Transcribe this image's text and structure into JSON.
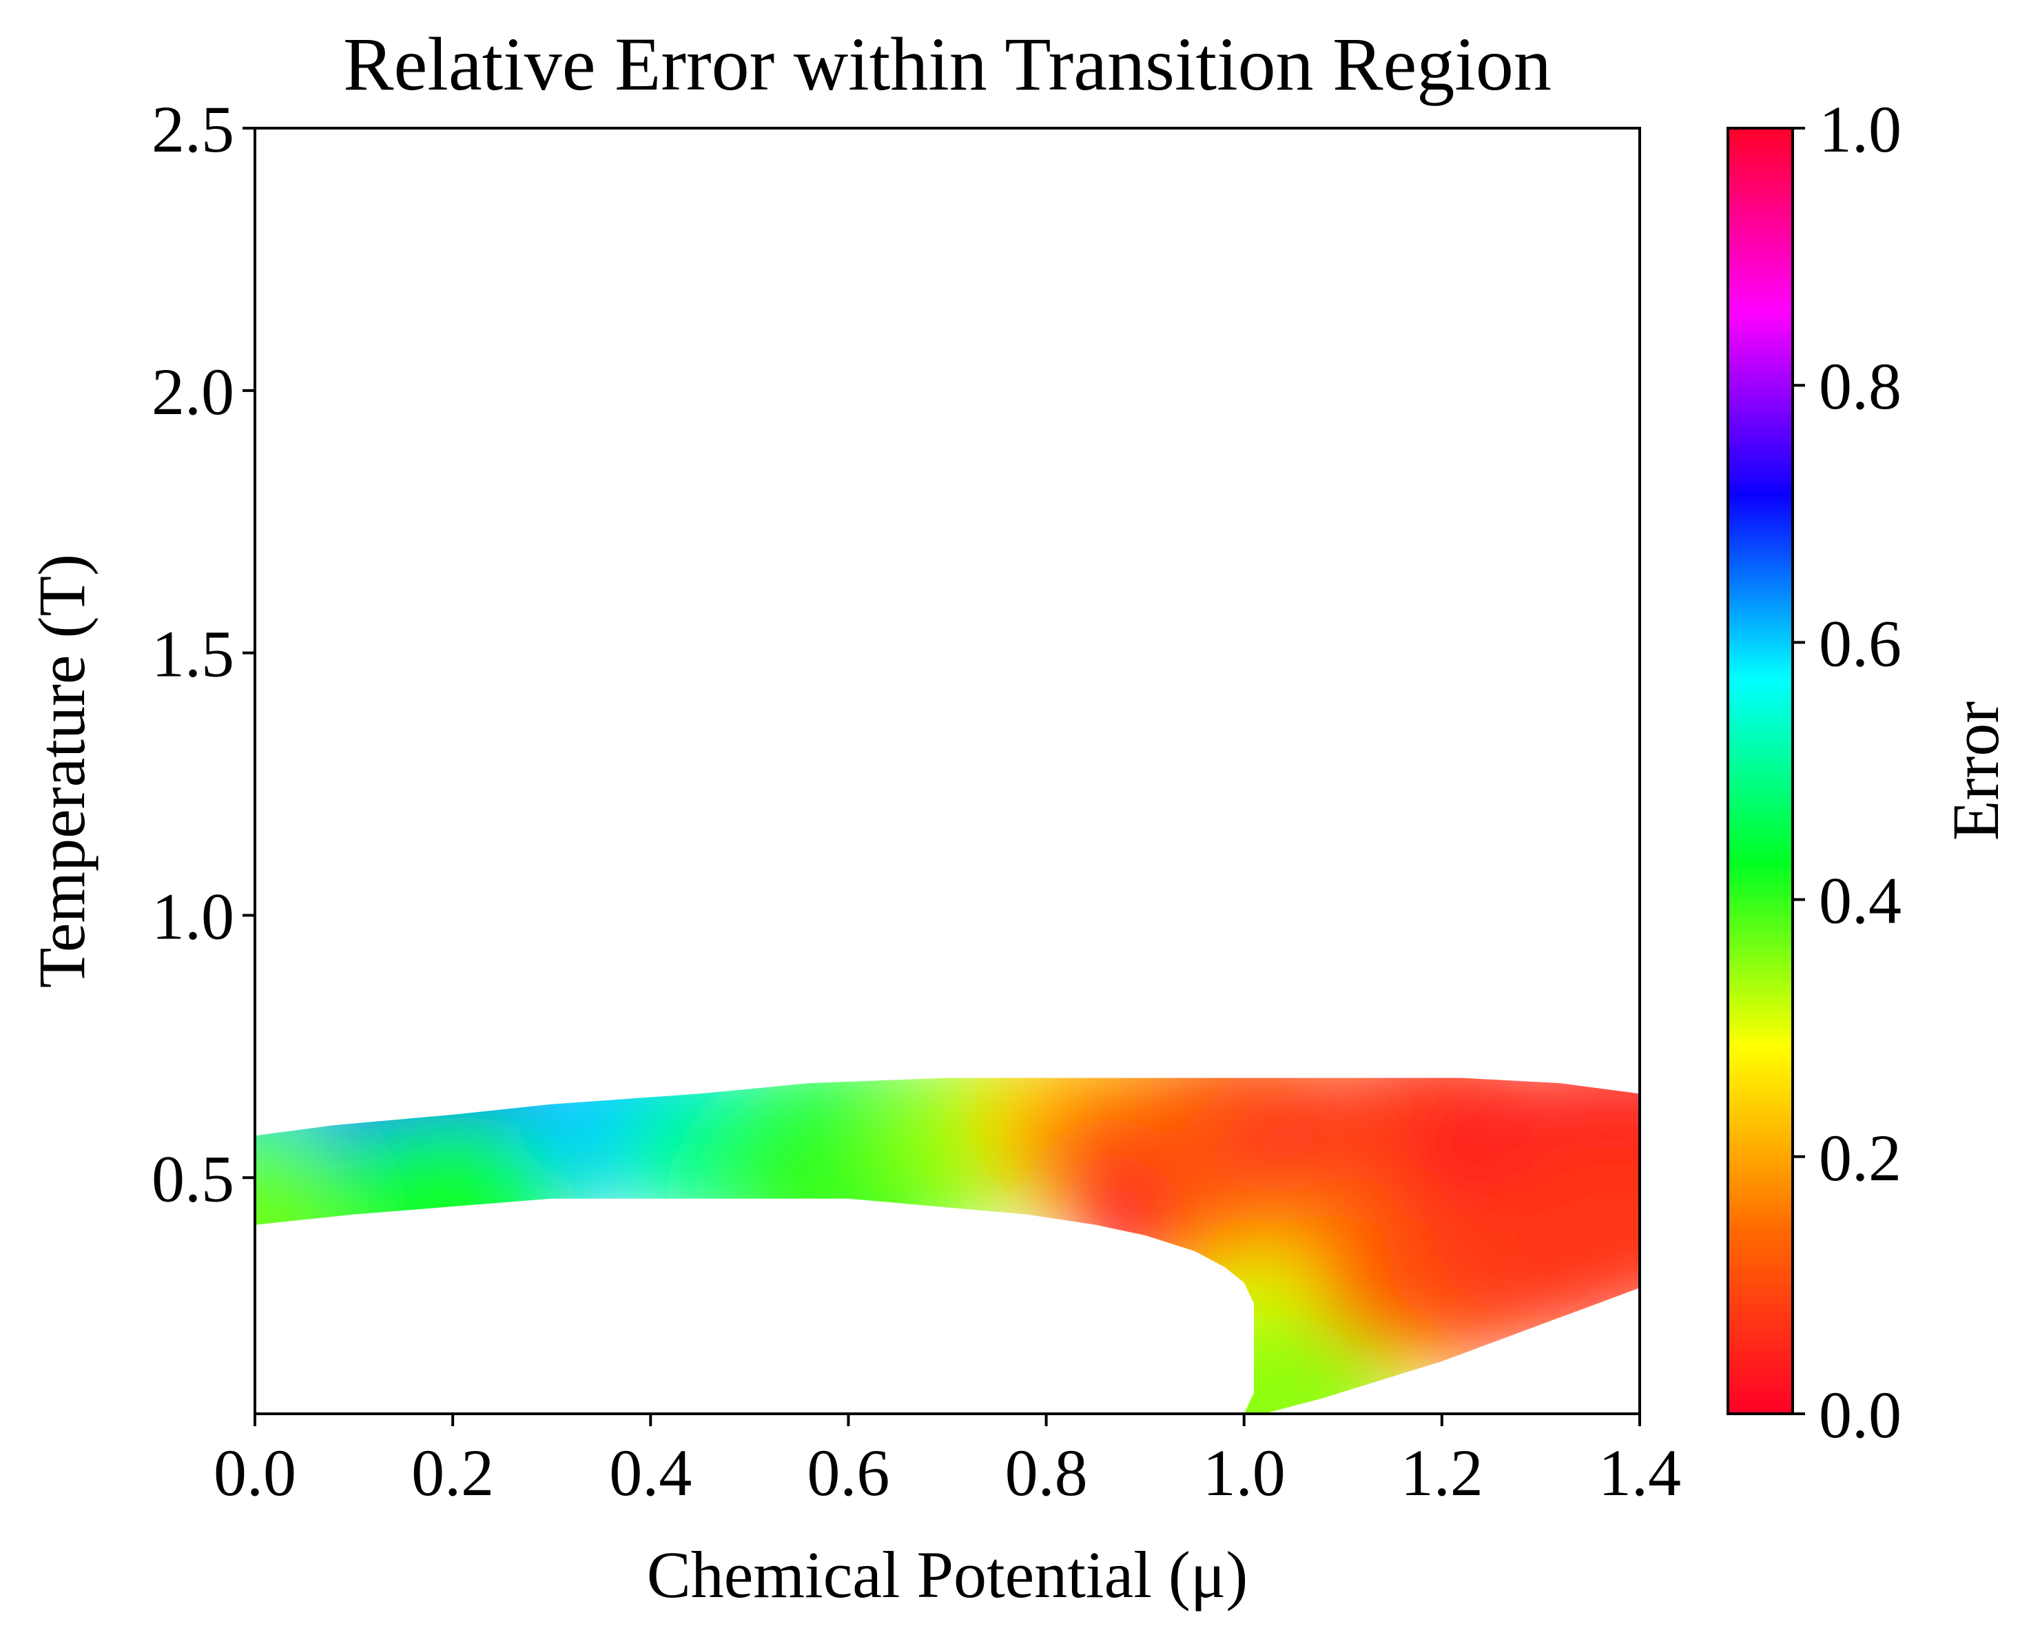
{
  "chart_data": {
    "type": "heatmap",
    "title": "Relative Error within Transition Region",
    "xlabel": "Chemical Potential (μ)",
    "ylabel": "Temperature (T)",
    "xlim": [
      0.0,
      1.4
    ],
    "ylim": [
      0.05,
      2.5
    ],
    "x_ticks": [
      "0.0",
      "0.2",
      "0.4",
      "0.6",
      "0.8",
      "1.0",
      "1.2",
      "1.4"
    ],
    "y_ticks": [
      "0.5",
      "1.0",
      "1.5",
      "2.0",
      "2.5"
    ],
    "colorbar": {
      "label": "Error",
      "range": [
        0.0,
        1.0
      ],
      "ticks": [
        "0.0",
        "0.2",
        "0.4",
        "0.6",
        "0.8",
        "1.0"
      ],
      "colormap": "gist_rainbow_r",
      "colors": [
        "#ff0028",
        "#ff6a00",
        "#ffff00",
        "#00ff22",
        "#00ffff",
        "#0a00ff",
        "#ff00ff",
        "#ff0028"
      ]
    },
    "region_upper_boundary": [
      [
        0.0,
        0.58
      ],
      [
        0.08,
        0.6
      ],
      [
        0.2,
        0.62
      ],
      [
        0.3,
        0.64
      ],
      [
        0.45,
        0.66
      ],
      [
        0.56,
        0.68
      ],
      [
        0.7,
        0.69
      ],
      [
        1.22,
        0.69
      ],
      [
        1.32,
        0.68
      ],
      [
        1.4,
        0.66
      ]
    ],
    "region_lower_boundary": [
      [
        0.0,
        0.41
      ],
      [
        0.1,
        0.43
      ],
      [
        0.3,
        0.46
      ],
      [
        0.6,
        0.46
      ],
      [
        0.78,
        0.43
      ],
      [
        0.85,
        0.41
      ],
      [
        0.9,
        0.39
      ],
      [
        0.95,
        0.36
      ],
      [
        0.98,
        0.33
      ],
      [
        1.0,
        0.3
      ],
      [
        1.01,
        0.26
      ],
      [
        1.01,
        0.09
      ],
      [
        1.0,
        0.05
      ],
      [
        1.02,
        0.05
      ],
      [
        1.08,
        0.08
      ],
      [
        1.2,
        0.15
      ],
      [
        1.3,
        0.22
      ],
      [
        1.4,
        0.29
      ]
    ],
    "error_samples": [
      {
        "mu": 0.0,
        "T": 0.56,
        "error": 0.68
      },
      {
        "mu": 0.0,
        "T": 0.5,
        "error": 0.53
      },
      {
        "mu": 0.0,
        "T": 0.43,
        "error": 0.37
      },
      {
        "mu": 0.2,
        "T": 0.59,
        "error": 0.66
      },
      {
        "mu": 0.2,
        "T": 0.46,
        "error": 0.42
      },
      {
        "mu": 0.4,
        "T": 0.6,
        "error": 0.6
      },
      {
        "mu": 0.5,
        "T": 0.54,
        "error": 0.5
      },
      {
        "mu": 0.6,
        "T": 0.58,
        "error": 0.46
      },
      {
        "mu": 0.6,
        "T": 0.48,
        "error": 0.4
      },
      {
        "mu": 0.75,
        "T": 0.58,
        "error": 0.35
      },
      {
        "mu": 0.85,
        "T": 0.6,
        "error": 0.25
      },
      {
        "mu": 0.9,
        "T": 0.55,
        "error": 0.15
      },
      {
        "mu": 0.95,
        "T": 0.45,
        "error": 0.02
      },
      {
        "mu": 1.0,
        "T": 0.6,
        "error": 0.12
      },
      {
        "mu": 1.1,
        "T": 0.5,
        "error": 0.01
      },
      {
        "mu": 1.2,
        "T": 0.6,
        "error": 0.08
      },
      {
        "mu": 1.3,
        "T": 0.52,
        "error": 0.02
      },
      {
        "mu": 1.38,
        "T": 0.58,
        "error": 0.05
      },
      {
        "mu": 1.05,
        "T": 0.35,
        "error": 0.15
      },
      {
        "mu": 1.05,
        "T": 0.2,
        "error": 0.3
      },
      {
        "mu": 1.02,
        "T": 0.08,
        "error": 0.35
      },
      {
        "mu": 1.2,
        "T": 0.3,
        "error": 0.12
      },
      {
        "mu": 1.3,
        "T": 0.35,
        "error": 0.08
      },
      {
        "mu": 1.38,
        "T": 0.4,
        "error": 0.07
      }
    ]
  }
}
